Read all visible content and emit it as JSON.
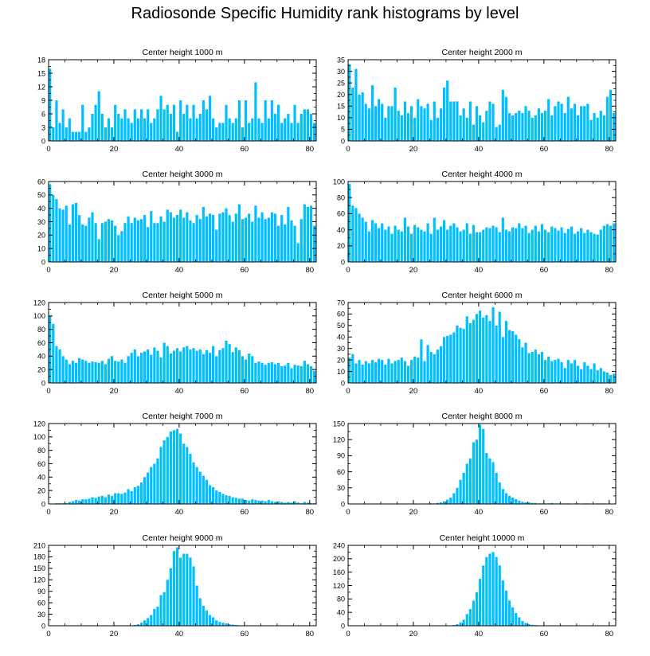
{
  "figure": {
    "title": "Radiosonde Specific Humidity rank histograms by level"
  },
  "style": {
    "bar_color": "#00BFFF",
    "bar_edge": "#ffffff",
    "axis_color": "#000000"
  },
  "chart_data": [
    {
      "type": "bar",
      "title": "Center height 1000 m",
      "xlim": [
        0,
        82
      ],
      "ylim": [
        0,
        18
      ],
      "xticks": [
        0,
        20,
        40,
        60,
        80
      ],
      "yticks": [
        0,
        3,
        6,
        9,
        12,
        15,
        18
      ],
      "values": [
        16,
        3,
        9,
        4,
        7,
        3,
        5,
        2,
        2,
        2,
        8,
        2,
        3,
        6,
        8,
        11,
        6,
        3,
        5,
        3,
        8,
        6,
        5,
        7,
        5,
        4,
        7,
        5,
        7,
        5,
        7,
        4,
        5,
        7,
        10,
        7,
        8,
        6,
        8,
        2,
        9,
        6,
        8,
        5,
        8,
        5,
        6,
        9,
        7,
        10,
        5,
        3,
        4,
        4,
        8,
        5,
        4,
        5,
        9,
        3,
        9,
        4,
        5,
        13,
        5,
        4,
        9,
        5,
        9,
        6,
        8,
        4,
        5,
        6,
        4,
        8,
        4,
        6,
        7,
        7,
        6,
        4
      ]
    },
    {
      "type": "bar",
      "title": "Center height 2000 m",
      "xlim": [
        0,
        82
      ],
      "ylim": [
        0,
        35
      ],
      "xticks": [
        0,
        20,
        40,
        60,
        80
      ],
      "yticks": [
        0,
        5,
        10,
        15,
        20,
        25,
        30,
        35
      ],
      "values": [
        33,
        23,
        31,
        20,
        21,
        16,
        14,
        24,
        15,
        18,
        16,
        10,
        15,
        15,
        23,
        13,
        11,
        17,
        12,
        15,
        10,
        18,
        15,
        14,
        16,
        9,
        17,
        10,
        14,
        23,
        26,
        17,
        17,
        17,
        11,
        14,
        10,
        17,
        7,
        15,
        11,
        8,
        13,
        17,
        16,
        6,
        7,
        22,
        19,
        12,
        11,
        12,
        13,
        12,
        15,
        13,
        10,
        11,
        14,
        12,
        13,
        18,
        11,
        15,
        17,
        16,
        12,
        19,
        14,
        16,
        11,
        15,
        15,
        16,
        9,
        12,
        10,
        13,
        11,
        19,
        22,
        12
      ]
    },
    {
      "type": "bar",
      "title": "Center height 3000 m",
      "xlim": [
        0,
        82
      ],
      "ylim": [
        0,
        60
      ],
      "xticks": [
        0,
        20,
        40,
        60,
        80
      ],
      "yticks": [
        0,
        10,
        20,
        30,
        40,
        50,
        60
      ],
      "values": [
        58,
        50,
        47,
        40,
        39,
        42,
        28,
        43,
        44,
        35,
        28,
        27,
        33,
        37,
        29,
        17,
        29,
        30,
        32,
        31,
        27,
        20,
        23,
        29,
        34,
        29,
        33,
        31,
        32,
        35,
        26,
        38,
        29,
        29,
        34,
        30,
        39,
        37,
        33,
        35,
        39,
        33,
        37,
        31,
        29,
        35,
        32,
        41,
        34,
        36,
        35,
        24,
        36,
        37,
        40,
        35,
        30,
        36,
        43,
        32,
        33,
        36,
        30,
        42,
        33,
        37,
        32,
        33,
        37,
        36,
        27,
        35,
        28,
        41,
        31,
        27,
        14,
        32,
        43,
        41,
        42,
        27
      ]
    },
    {
      "type": "bar",
      "title": "Center height 4000 m",
      "xlim": [
        0,
        82
      ],
      "ylim": [
        0,
        100
      ],
      "xticks": [
        0,
        20,
        40,
        60,
        80
      ],
      "yticks": [
        0,
        20,
        40,
        60,
        80,
        100
      ],
      "values": [
        97,
        70,
        67,
        60,
        55,
        50,
        38,
        52,
        48,
        42,
        48,
        40,
        44,
        35,
        45,
        40,
        38,
        55,
        44,
        35,
        46,
        43,
        40,
        38,
        48,
        35,
        55,
        40,
        44,
        52,
        40,
        45,
        48,
        43,
        38,
        40,
        48,
        35,
        46,
        37,
        37,
        40,
        43,
        42,
        45,
        43,
        37,
        55,
        40,
        38,
        43,
        42,
        48,
        42,
        45,
        36,
        40,
        45,
        38,
        47,
        40,
        37,
        44,
        42,
        39,
        43,
        36,
        41,
        44,
        35,
        38,
        42,
        36,
        40,
        37,
        35,
        34,
        40,
        45,
        47,
        45,
        48
      ]
    },
    {
      "type": "bar",
      "title": "Center height 5000 m",
      "xlim": [
        0,
        82
      ],
      "ylim": [
        0,
        120
      ],
      "xticks": [
        0,
        20,
        40,
        60,
        80
      ],
      "yticks": [
        0,
        20,
        40,
        60,
        80,
        100,
        120
      ],
      "values": [
        100,
        88,
        55,
        50,
        40,
        35,
        28,
        33,
        30,
        37,
        35,
        33,
        30,
        32,
        31,
        30,
        33,
        28,
        36,
        40,
        33,
        32,
        35,
        30,
        40,
        45,
        50,
        40,
        45,
        47,
        50,
        42,
        53,
        48,
        38,
        60,
        55,
        44,
        48,
        52,
        47,
        53,
        55,
        50,
        52,
        48,
        50,
        43,
        49,
        45,
        55,
        40,
        49,
        52,
        63,
        58,
        46,
        53,
        49,
        40,
        35,
        44,
        40,
        30,
        32,
        30,
        27,
        30,
        31,
        28,
        30,
        25,
        26,
        30,
        22,
        27,
        26,
        25,
        33,
        28,
        25,
        18
      ]
    },
    {
      "type": "bar",
      "title": "Center height 6000 m",
      "xlim": [
        0,
        82
      ],
      "ylim": [
        0,
        70
      ],
      "xticks": [
        0,
        20,
        40,
        60,
        80
      ],
      "yticks": [
        0,
        10,
        20,
        30,
        40,
        50,
        60,
        70
      ],
      "values": [
        22,
        25,
        17,
        20,
        16,
        19,
        17,
        20,
        18,
        21,
        20,
        16,
        21,
        17,
        19,
        20,
        22,
        19,
        15,
        20,
        23,
        22,
        38,
        19,
        33,
        27,
        25,
        29,
        32,
        40,
        41,
        42,
        44,
        50,
        48,
        47,
        58,
        52,
        55,
        60,
        63,
        57,
        59,
        54,
        66,
        50,
        62,
        40,
        54,
        46,
        45,
        42,
        38,
        31,
        35,
        26,
        27,
        29,
        25,
        27,
        20,
        23,
        19,
        20,
        21,
        18,
        13,
        20,
        17,
        20,
        15,
        12,
        18,
        15,
        12,
        17,
        11,
        13,
        10,
        9,
        7,
        8
      ]
    },
    {
      "type": "bar",
      "title": "Center height 7000 m",
      "xlim": [
        0,
        82
      ],
      "ylim": [
        0,
        120
      ],
      "xticks": [
        0,
        20,
        40,
        60,
        80
      ],
      "yticks": [
        0,
        20,
        40,
        60,
        80,
        100,
        120
      ],
      "values": [
        0,
        0,
        1,
        1,
        1,
        1,
        3,
        4,
        6,
        5,
        7,
        7,
        8,
        10,
        9,
        11,
        12,
        10,
        14,
        12,
        16,
        16,
        15,
        17,
        22,
        19,
        25,
        27,
        32,
        40,
        47,
        55,
        60,
        68,
        85,
        95,
        100,
        108,
        110,
        112,
        105,
        90,
        85,
        75,
        62,
        55,
        48,
        42,
        36,
        28,
        25,
        20,
        18,
        15,
        13,
        12,
        10,
        9,
        8,
        8,
        6,
        5,
        7,
        6,
        5,
        5,
        4,
        6,
        4,
        3,
        4,
        3,
        2,
        3,
        2,
        4,
        2,
        1,
        3,
        2,
        1,
        1
      ]
    },
    {
      "type": "bar",
      "title": "Center height 8000 m",
      "xlim": [
        0,
        82
      ],
      "ylim": [
        0,
        150
      ],
      "xticks": [
        0,
        20,
        40,
        60,
        80
      ],
      "yticks": [
        0,
        30,
        60,
        90,
        120,
        150
      ],
      "values": [
        0,
        0,
        0,
        0,
        0,
        0,
        0,
        0,
        0,
        0,
        0,
        0,
        0,
        0,
        0,
        0,
        0,
        0,
        0,
        0,
        0,
        0,
        0,
        0,
        0,
        1,
        1,
        2,
        3,
        5,
        8,
        12,
        20,
        30,
        45,
        58,
        75,
        85,
        115,
        120,
        148,
        140,
        95,
        85,
        78,
        58,
        40,
        28,
        20,
        15,
        12,
        9,
        6,
        4,
        3,
        3,
        2,
        2,
        1,
        1,
        1,
        1,
        2,
        1,
        1,
        1,
        1,
        1,
        0,
        1,
        1,
        0,
        1,
        1,
        0,
        0,
        1,
        1,
        1,
        0,
        0,
        0
      ]
    },
    {
      "type": "bar",
      "title": "Center height 9000 m",
      "xlim": [
        0,
        82
      ],
      "ylim": [
        0,
        210
      ],
      "xticks": [
        0,
        20,
        40,
        60,
        80
      ],
      "yticks": [
        0,
        30,
        60,
        90,
        120,
        150,
        180,
        210
      ],
      "values": [
        0,
        0,
        0,
        0,
        0,
        0,
        0,
        0,
        0,
        0,
        0,
        0,
        0,
        0,
        0,
        0,
        0,
        0,
        0,
        0,
        0,
        0,
        0,
        0,
        0,
        1,
        2,
        4,
        8,
        14,
        20,
        28,
        44,
        50,
        80,
        88,
        120,
        150,
        195,
        205,
        178,
        188,
        188,
        178,
        155,
        105,
        72,
        52,
        40,
        28,
        22,
        14,
        10,
        8,
        6,
        4,
        3,
        2,
        1,
        1,
        1,
        1,
        0,
        0,
        0,
        0,
        0,
        0,
        0,
        0,
        0,
        0,
        0,
        0,
        0,
        0,
        0,
        0,
        0,
        0,
        0,
        0
      ]
    },
    {
      "type": "bar",
      "title": "Center height 10000 m",
      "xlim": [
        0,
        82
      ],
      "ylim": [
        0,
        240
      ],
      "xticks": [
        0,
        20,
        40,
        60,
        80
      ],
      "yticks": [
        0,
        40,
        80,
        120,
        160,
        200,
        240
      ],
      "values": [
        0,
        0,
        0,
        0,
        0,
        0,
        0,
        0,
        0,
        0,
        0,
        0,
        0,
        0,
        0,
        0,
        0,
        0,
        0,
        0,
        0,
        0,
        0,
        0,
        0,
        0,
        0,
        0,
        0,
        0,
        0,
        0,
        2,
        5,
        10,
        18,
        35,
        50,
        75,
        100,
        140,
        180,
        205,
        215,
        220,
        205,
        180,
        135,
        105,
        75,
        55,
        38,
        25,
        14,
        8,
        5,
        3,
        2,
        1,
        1,
        0,
        0,
        0,
        0,
        0,
        0,
        0,
        0,
        0,
        0,
        0,
        0,
        0,
        0,
        0,
        0,
        0,
        0,
        0,
        0,
        0,
        0
      ]
    }
  ]
}
